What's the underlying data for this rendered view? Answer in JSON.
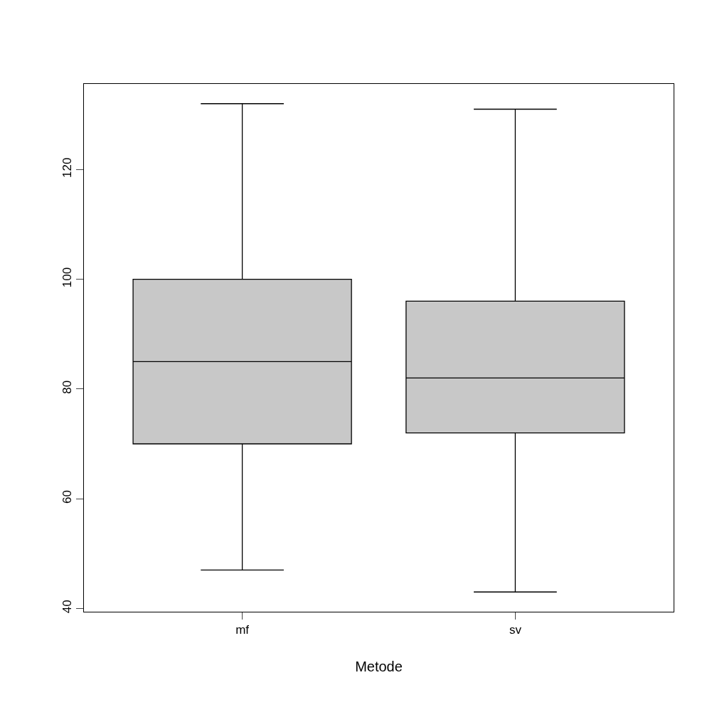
{
  "chart_data": {
    "type": "box",
    "xlabel": "Metode",
    "categories": [
      "mf",
      "sv"
    ],
    "color": "#c8c8c8",
    "boxes": [
      {
        "low": 47,
        "q1": 70,
        "median": 85,
        "q3": 100,
        "high": 132
      },
      {
        "low": 43,
        "q1": 72,
        "median": 82,
        "q3": 96,
        "high": 131
      }
    ],
    "ylim": [
      39.4,
      135.6
    ],
    "yticks": [
      40,
      60,
      80,
      100,
      120
    ]
  }
}
